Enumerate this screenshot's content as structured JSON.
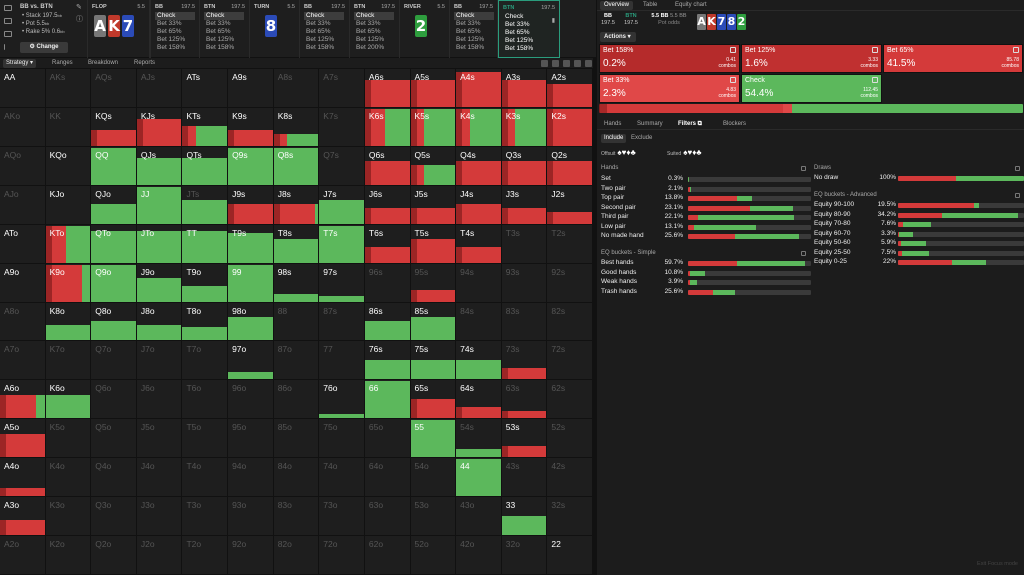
{
  "colors": {
    "bet": "#d43a3a",
    "bet_dark": "#9c2525",
    "check": "#5cb85c",
    "bg": "#1a1a1a"
  },
  "game": {
    "title": "BB vs. BTN",
    "lines": [
      "• Stack 197.5",
      "• Pot 5.5",
      "• Rake 5% 0.6"
    ],
    "bb_suffix": "bb",
    "change_label": "Change"
  },
  "board": [
    {
      "label": "FLOP",
      "pot": "5.5",
      "cards": [
        {
          "r": "A",
          "c": "#777"
        },
        {
          "r": "K",
          "c": "#c0392b"
        },
        {
          "r": "7",
          "c": "#2b4bb8"
        }
      ]
    },
    {
      "label": "TURN",
      "pot": "5.5",
      "cards": [
        {
          "r": "8",
          "c": "#2b4bb8"
        }
      ]
    },
    {
      "label": "RIVER",
      "pot": "5.5",
      "cards": [
        {
          "r": "2",
          "c": "#2e9e3e"
        }
      ]
    }
  ],
  "players": [
    {
      "name": "BB",
      "stack": "197.5",
      "actions": [
        "Check",
        "Bet 33%",
        "Bet 65%",
        "Bet 125%",
        "Bet 158%"
      ],
      "sel": 0
    },
    {
      "name": "BTN",
      "stack": "197.5",
      "actions": [
        "Check",
        "Bet 33%",
        "Bet 65%",
        "Bet 125%",
        "Bet 158%"
      ],
      "sel": 0
    },
    {
      "name": "BB",
      "stack": "197.5",
      "actions": [
        "Check",
        "Bet 33%",
        "Bet 65%",
        "Bet 125%",
        "Bet 158%"
      ],
      "sel": 0
    },
    {
      "name": "BTN",
      "stack": "197.5",
      "actions": [
        "Check",
        "Bet 33%",
        "Bet 65%",
        "Bet 125%",
        "Bet 200%"
      ],
      "sel": 0
    },
    {
      "name": "BB",
      "stack": "197.5",
      "actions": [
        "Check",
        "Bet 33%",
        "Bet 65%",
        "Bet 125%",
        "Bet 158%"
      ],
      "sel": 0
    },
    {
      "name": "BTN",
      "stack": "197.5",
      "actions": [
        "Check",
        "Bet 33%",
        "Bet 65%",
        "Bet 125%",
        "Bet 158%"
      ],
      "sel": -1
    }
  ],
  "subtabs": [
    "Strategy",
    "Ranges",
    "Breakdown",
    "Reports"
  ],
  "grid": {
    "rows": [
      [
        "AA",
        "AKs",
        "AQs",
        "AJs",
        "ATs",
        "A9s",
        "A8s",
        "A7s",
        "A6s",
        "A5s",
        "A4s",
        "A3s",
        "A2s"
      ],
      [
        "AKo",
        "KK",
        "KQs",
        "KJs",
        "KTs",
        "K9s",
        "K8s",
        "K7s",
        "K6s",
        "K5s",
        "K4s",
        "K3s",
        "K2s"
      ],
      [
        "AQo",
        "KQo",
        "QQ",
        "QJs",
        "QTs",
        "Q9s",
        "Q8s",
        "Q7s",
        "Q6s",
        "Q5s",
        "Q4s",
        "Q3s",
        "Q2s"
      ],
      [
        "AJo",
        "KJo",
        "QJo",
        "JJ",
        "JTs",
        "J9s",
        "J8s",
        "J7s",
        "J6s",
        "J5s",
        "J4s",
        "J3s",
        "J2s"
      ],
      [
        "ATo",
        "KTo",
        "QTo",
        "JTo",
        "TT",
        "T9s",
        "T8s",
        "T7s",
        "T6s",
        "T5s",
        "T4s",
        "T3s",
        "T2s"
      ],
      [
        "A9o",
        "K9o",
        "Q9o",
        "J9o",
        "T9o",
        "99",
        "98s",
        "97s",
        "96s",
        "95s",
        "94s",
        "93s",
        "92s"
      ],
      [
        "A8o",
        "K8o",
        "Q8o",
        "J8o",
        "T8o",
        "98o",
        "88",
        "87s",
        "86s",
        "85s",
        "84s",
        "83s",
        "82s"
      ],
      [
        "A7o",
        "K7o",
        "Q7o",
        "J7o",
        "T7o",
        "97o",
        "87o",
        "77",
        "76s",
        "75s",
        "74s",
        "73s",
        "72s"
      ],
      [
        "A6o",
        "K6o",
        "Q6o",
        "J6o",
        "T6o",
        "96o",
        "86o",
        "76o",
        "66",
        "65s",
        "64s",
        "63s",
        "62s"
      ],
      [
        "A5o",
        "K5o",
        "Q5o",
        "J5o",
        "T5o",
        "95o",
        "85o",
        "75o",
        "65o",
        "55",
        "54s",
        "53s",
        "52s"
      ],
      [
        "A4o",
        "K4o",
        "Q4o",
        "J4o",
        "T4o",
        "94o",
        "84o",
        "74o",
        "64o",
        "54o",
        "44",
        "43s",
        "42s"
      ],
      [
        "A3o",
        "K3o",
        "Q3o",
        "J3o",
        "T3o",
        "93o",
        "83o",
        "73o",
        "63o",
        "53o",
        "43o",
        "33",
        "32s"
      ],
      [
        "A2o",
        "K2o",
        "Q2o",
        "J2o",
        "T2o",
        "92o",
        "82o",
        "72o",
        "62o",
        "52o",
        "42o",
        "32o",
        "22"
      ]
    ],
    "dim": [
      [
        0,
        1,
        1,
        1,
        0,
        0,
        1,
        1,
        0,
        0,
        0,
        0,
        0
      ],
      [
        1,
        1,
        0,
        0,
        0,
        0,
        0,
        1,
        0,
        0,
        0,
        0,
        0
      ],
      [
        1,
        0,
        0,
        0,
        0,
        0,
        0,
        1,
        0,
        0,
        0,
        0,
        0
      ],
      [
        1,
        0,
        0,
        0,
        1,
        0,
        0,
        0,
        0,
        0,
        0,
        0,
        0
      ],
      [
        0,
        0,
        0,
        0,
        0,
        0,
        0,
        0,
        0,
        0,
        0,
        1,
        1
      ],
      [
        0,
        0,
        0,
        0,
        0,
        0,
        0,
        0,
        1,
        1,
        1,
        1,
        1
      ],
      [
        1,
        0,
        0,
        0,
        0,
        0,
        1,
        1,
        0,
        0,
        1,
        1,
        1
      ],
      [
        1,
        1,
        1,
        1,
        1,
        0,
        1,
        1,
        0,
        0,
        0,
        1,
        1
      ],
      [
        0,
        0,
        1,
        1,
        1,
        1,
        1,
        0,
        0,
        0,
        0,
        1,
        1
      ],
      [
        0,
        1,
        1,
        1,
        1,
        1,
        1,
        1,
        1,
        0,
        1,
        0,
        1
      ],
      [
        0,
        1,
        1,
        1,
        1,
        1,
        1,
        1,
        1,
        1,
        0,
        1,
        1
      ],
      [
        0,
        1,
        1,
        1,
        1,
        1,
        1,
        1,
        1,
        1,
        1,
        0,
        1
      ],
      [
        1,
        1,
        1,
        1,
        1,
        1,
        1,
        1,
        1,
        1,
        1,
        1,
        0
      ]
    ],
    "fill": [
      [
        0,
        0,
        0,
        0,
        0,
        0,
        0,
        0,
        0.7,
        0.7,
        0.9,
        0.7,
        0.6
      ],
      [
        0,
        0,
        0.4,
        0.7,
        0.5,
        0.4,
        0.3,
        0,
        0.95,
        0.95,
        0.95,
        0.95,
        0.95
      ],
      [
        0,
        0,
        0.95,
        0.7,
        0.7,
        0.95,
        0.95,
        0,
        0.6,
        0.5,
        0.6,
        0.6,
        0.6
      ],
      [
        0,
        0,
        0.5,
        0.95,
        0.6,
        0.5,
        0.5,
        0.6,
        0.4,
        0.4,
        0.5,
        0.4,
        0.3
      ],
      [
        0,
        0.95,
        0.8,
        0.8,
        0.8,
        0.75,
        0.6,
        0.95,
        0.4,
        0.6,
        0.4,
        0,
        0
      ],
      [
        0,
        0.95,
        0.95,
        0.6,
        0.4,
        0.95,
        0.2,
        0.15,
        0,
        0.3,
        0,
        0,
        0
      ],
      [
        0,
        0.4,
        0.5,
        0.4,
        0.35,
        0.6,
        0,
        0,
        0.5,
        0.6,
        0,
        0,
        0
      ],
      [
        0,
        0,
        0,
        0,
        0,
        0.2,
        0,
        0,
        0.5,
        0.5,
        0.5,
        0.3,
        0
      ],
      [
        0.6,
        0.6,
        0,
        0,
        0,
        0,
        0,
        0.1,
        0.95,
        0.5,
        0.3,
        0.2,
        0
      ],
      [
        0.6,
        0,
        0,
        0,
        0,
        0,
        0,
        0,
        0,
        0.95,
        0.2,
        0.3,
        0
      ],
      [
        0.2,
        0,
        0,
        0,
        0,
        0,
        0,
        0,
        0,
        0,
        0.95,
        0,
        0
      ],
      [
        0.4,
        0,
        0,
        0,
        0,
        0,
        0,
        0,
        0,
        0,
        0,
        0.5,
        0
      ],
      [
        0,
        0,
        0,
        0,
        0,
        0,
        0,
        0,
        0,
        0,
        0,
        0,
        0
      ]
    ],
    "betShare": [
      [
        0,
        0,
        0,
        0,
        0,
        0,
        0,
        0,
        1,
        1,
        1,
        1,
        1
      ],
      [
        0,
        0,
        1,
        1,
        0.3,
        1,
        0.3,
        0,
        0.45,
        0.3,
        0.3,
        0.3,
        1
      ],
      [
        0,
        0,
        0,
        0,
        0,
        0,
        0,
        0,
        1,
        0.3,
        1,
        1,
        1
      ],
      [
        0,
        0,
        0,
        0,
        0,
        1,
        0.9,
        0,
        1,
        1,
        1,
        1,
        1
      ],
      [
        0,
        0.45,
        0,
        0,
        0,
        0,
        0,
        0,
        1,
        1,
        1,
        0,
        0
      ],
      [
        0,
        0.8,
        0,
        0,
        0,
        0,
        0,
        0,
        0,
        1,
        0,
        0,
        0
      ],
      [
        0,
        0,
        0,
        0,
        0,
        0,
        0,
        0,
        0,
        0,
        0,
        0,
        0
      ],
      [
        0,
        0,
        0,
        0,
        0,
        0,
        0,
        0,
        0,
        0,
        0,
        1,
        0
      ],
      [
        0.8,
        0,
        0,
        0,
        0,
        0,
        0,
        0,
        0,
        1,
        1,
        1,
        0
      ],
      [
        1,
        0,
        0,
        0,
        0,
        0,
        0,
        0,
        0,
        0,
        0,
        1,
        0
      ],
      [
        1,
        0,
        0,
        0,
        0,
        0,
        0,
        0,
        0,
        0,
        0,
        0,
        0
      ],
      [
        1,
        0,
        0,
        0,
        0,
        0,
        0,
        0,
        0,
        0,
        0,
        0,
        0
      ],
      [
        0,
        0,
        0,
        0,
        0,
        0,
        0,
        0,
        0,
        0,
        0,
        0,
        0
      ]
    ]
  },
  "right": {
    "tabs": [
      "Overview",
      "Table",
      "Equity chart"
    ],
    "header": {
      "bb": "BB",
      "bb_stack": "197.5",
      "btn": "BTN",
      "btn_stack": "197.5",
      "pot": "5.5 BB",
      "pot_sub": "Pot odds",
      "pot_r": "5.5 BB"
    },
    "mini_cards": [
      {
        "r": "A",
        "c": "#777"
      },
      {
        "r": "K",
        "c": "#c0392b"
      },
      {
        "r": "7",
        "c": "#2b4bb8"
      },
      {
        "r": "8",
        "c": "#2b4bb8"
      },
      {
        "r": "2",
        "c": "#2e9e3e"
      }
    ],
    "actions_label": "Actions",
    "actions": [
      {
        "name": "Bet 158%",
        "pct": "0.2%",
        "combos": "0.41",
        "color": "#b52b2b"
      },
      {
        "name": "Bet 125%",
        "pct": "1.6%",
        "combos": "3.33",
        "color": "#c03030"
      },
      {
        "name": "Bet 65%",
        "pct": "41.5%",
        "combos": "85.78",
        "color": "#d43a3a"
      },
      {
        "name": "Bet 33%",
        "pct": "2.3%",
        "combos": "4.83",
        "color": "#e04848"
      },
      {
        "name": "Check",
        "pct": "54.4%",
        "combos": "112.45",
        "color": "#5cb85c"
      }
    ],
    "combos_word": "combos",
    "ftabs": [
      "Hands",
      "Summary",
      "Filters",
      "Blockers"
    ],
    "incl": [
      "Include",
      "Exclude"
    ],
    "offsuit_label": "Offsuit",
    "suited_label": "Suited",
    "hands_title": "Hands",
    "hands": [
      {
        "n": "Set",
        "v": "0.3%",
        "bet": 0.002,
        "chk": 0.001
      },
      {
        "n": "Two pair",
        "v": "2.1%",
        "bet": 0.015,
        "chk": 0.006
      },
      {
        "n": "Top pair",
        "v": "13.8%",
        "bet": 0.4,
        "chk": 0.12
      },
      {
        "n": "Second pair",
        "v": "23.1%",
        "bet": 0.5,
        "chk": 0.35
      },
      {
        "n": "Third pair",
        "v": "22.1%",
        "bet": 0.08,
        "chk": 0.78
      },
      {
        "n": "Low pair",
        "v": "13.1%",
        "bet": 0.05,
        "chk": 0.5
      },
      {
        "n": "No made hand",
        "v": "25.6%",
        "bet": 0.38,
        "chk": 0.52
      }
    ],
    "eqs_title": "EQ buckets - Simple",
    "eqs": [
      {
        "n": "Best hands",
        "v": "59.7%",
        "bet": 0.4,
        "chk": 0.55
      },
      {
        "n": "Good hands",
        "v": "10.8%",
        "bet": 0.02,
        "chk": 0.12
      },
      {
        "n": "Weak hands",
        "v": "3.9%",
        "bet": 0.02,
        "chk": 0.05
      },
      {
        "n": "Trash hands",
        "v": "25.6%",
        "bet": 0.2,
        "chk": 0.18
      }
    ],
    "draws_title": "Draws",
    "draws": [
      {
        "n": "No draw",
        "v": "100%",
        "bet": 0.46,
        "chk": 0.54
      }
    ],
    "eqa_title": "EQ buckets - Advanced",
    "eqa": [
      {
        "n": "Equity 90-100",
        "v": "19.5%",
        "bet": 0.6,
        "chk": 0.04
      },
      {
        "n": "Equity 80-90",
        "v": "34.2%",
        "bet": 0.35,
        "chk": 0.6
      },
      {
        "n": "Equity 70-80",
        "v": "7.6%",
        "bet": 0.04,
        "chk": 0.22
      },
      {
        "n": "Equity 60-70",
        "v": "3.3%",
        "bet": 0.01,
        "chk": 0.11
      },
      {
        "n": "Equity 50-60",
        "v": "5.9%",
        "bet": 0.02,
        "chk": 0.2
      },
      {
        "n": "Equity 25-50",
        "v": "7.5%",
        "bet": 0.03,
        "chk": 0.22
      },
      {
        "n": "Equity 0-25",
        "v": "22%",
        "bet": 0.43,
        "chk": 0.27
      }
    ],
    "footer": "Exit Focus mode"
  }
}
